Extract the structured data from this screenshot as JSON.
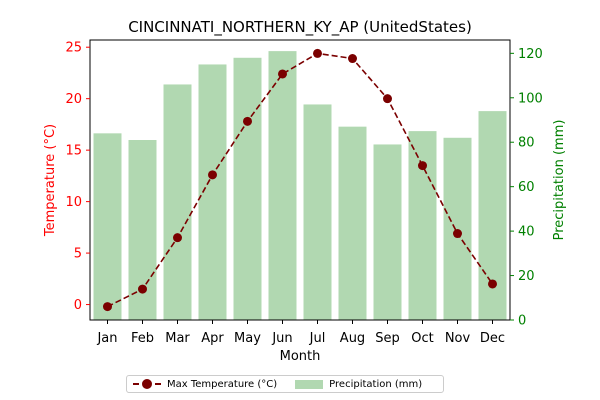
{
  "chart_data": {
    "type": "bar+line",
    "title": "CINCINNATI_NORTHERN_KY_AP (UnitedStates)",
    "xlabel": "Month",
    "ylabel_left": "Temperature (°C)",
    "ylabel_right": "Precipitation (mm)",
    "categories": [
      "Jan",
      "Feb",
      "Mar",
      "Apr",
      "May",
      "Jun",
      "Jul",
      "Aug",
      "Sep",
      "Oct",
      "Nov",
      "Dec"
    ],
    "y_left_lim": [
      -1.5,
      25.7
    ],
    "y_right_lim": [
      0,
      126
    ],
    "y_left_ticks": [
      0,
      5,
      10,
      15,
      20,
      25
    ],
    "y_right_ticks": [
      0,
      20,
      40,
      60,
      80,
      100,
      120
    ],
    "series": [
      {
        "name": "Max Temperature (°C)",
        "type": "line",
        "axis": "left",
        "color": "#7b0000",
        "values": [
          -0.2,
          1.5,
          6.5,
          12.6,
          17.8,
          22.4,
          24.4,
          23.9,
          20.0,
          13.5,
          6.9,
          2.0
        ]
      },
      {
        "name": "Precipitation (mm)",
        "type": "bar",
        "axis": "right",
        "color": "#b1d8b1",
        "values": [
          84,
          81,
          106,
          115,
          118,
          121,
          97,
          87,
          79,
          85,
          82,
          94
        ]
      }
    ],
    "left_axis_color": "#ff0000",
    "right_axis_color": "#008000",
    "legend_position": "bottom-center"
  }
}
